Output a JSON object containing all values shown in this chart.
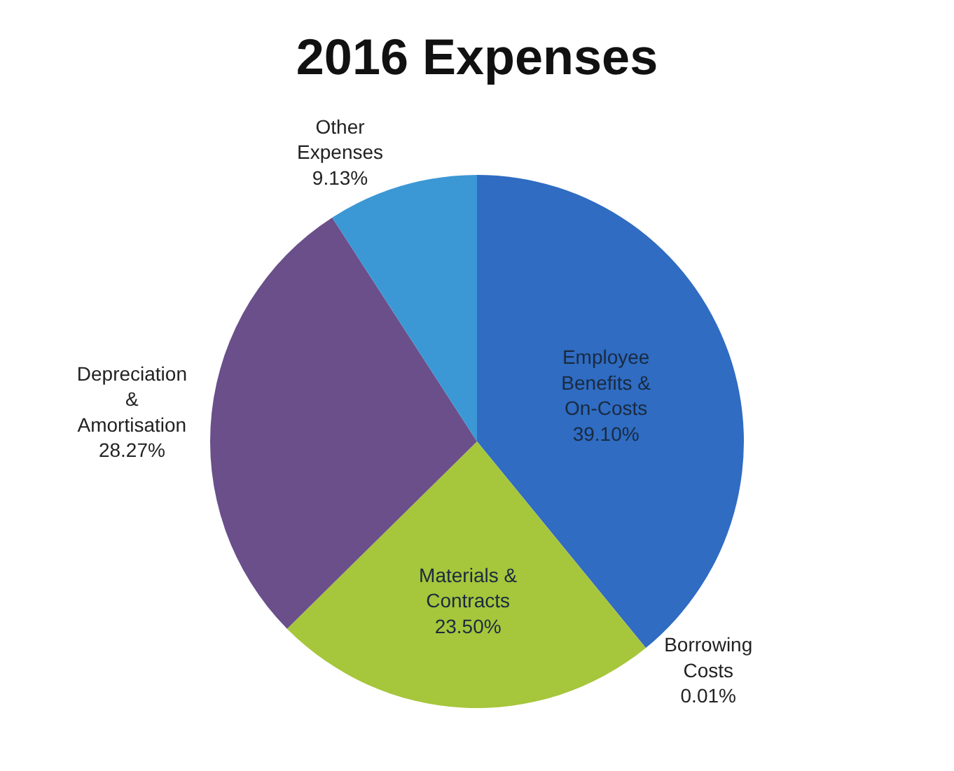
{
  "chart_data": {
    "type": "pie",
    "title": "2016 Expenses",
    "categories": [
      "Employee Benefits & On-Costs",
      "Borrowing Costs",
      "Materials & Contracts",
      "Depreciation & Amortisation",
      "Other Expenses"
    ],
    "values": [
      39.1,
      0.01,
      23.5,
      28.27,
      9.13
    ],
    "value_labels": [
      "39.10%",
      "0.01%",
      "23.50%",
      "28.27%",
      "9.13%"
    ],
    "colors": [
      "#2f6cc2",
      "#c0504d",
      "#a6c63b",
      "#6a4f8a",
      "#3b98d4"
    ],
    "legend": false
  }
}
